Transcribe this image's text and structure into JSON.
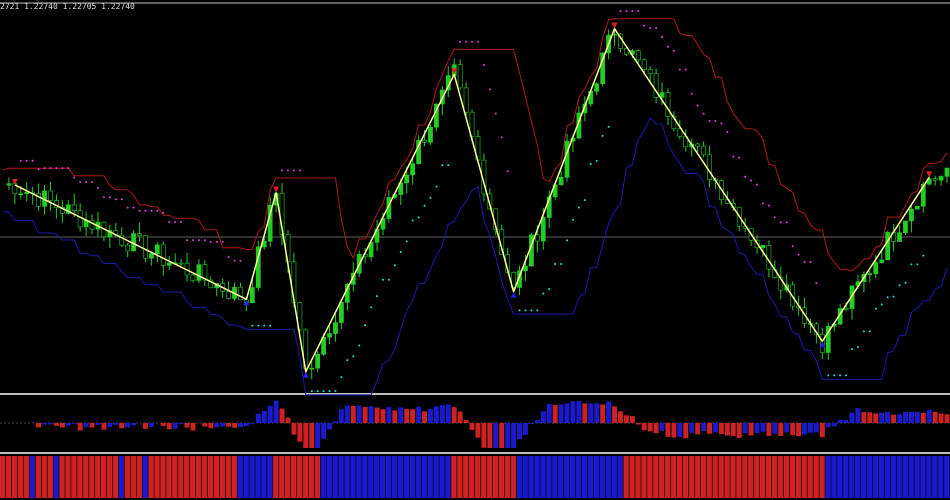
{
  "header": {
    "ohlc_text": "2721 1.22740 1.22705 1.22740"
  },
  "colors": {
    "bull": "#22cc22",
    "bear": "#22cc22",
    "zigzag": "#ffff99",
    "upper_channel": "#b01818",
    "lower_channel": "#1a1aa8",
    "hist_pos": "#1a1acc",
    "hist_neg": "#cc2222",
    "dot_bear": "#e040e0",
    "dot_bull": "#20e0e0",
    "arrow_up": "#e02020",
    "arrow_down": "#2020e0",
    "separator": "#c0c0c0",
    "gridline": "#808080"
  },
  "chart_data": {
    "type": "candlestick",
    "title": "",
    "bars": 160,
    "zigzag_pivots": [
      {
        "bar": 2,
        "level": 53
      },
      {
        "bar": 41,
        "level": 23
      },
      {
        "bar": 46,
        "level": 51
      },
      {
        "bar": 51,
        "level": 4
      },
      {
        "bar": 76,
        "level": 82
      },
      {
        "bar": 86,
        "level": 25
      },
      {
        "bar": 103,
        "level": 94
      },
      {
        "bar": 138,
        "level": 12
      },
      {
        "bar": 156,
        "level": 55
      }
    ],
    "panels": [
      "price",
      "oscillator-histogram",
      "trend-stripes"
    ],
    "grid": false
  }
}
